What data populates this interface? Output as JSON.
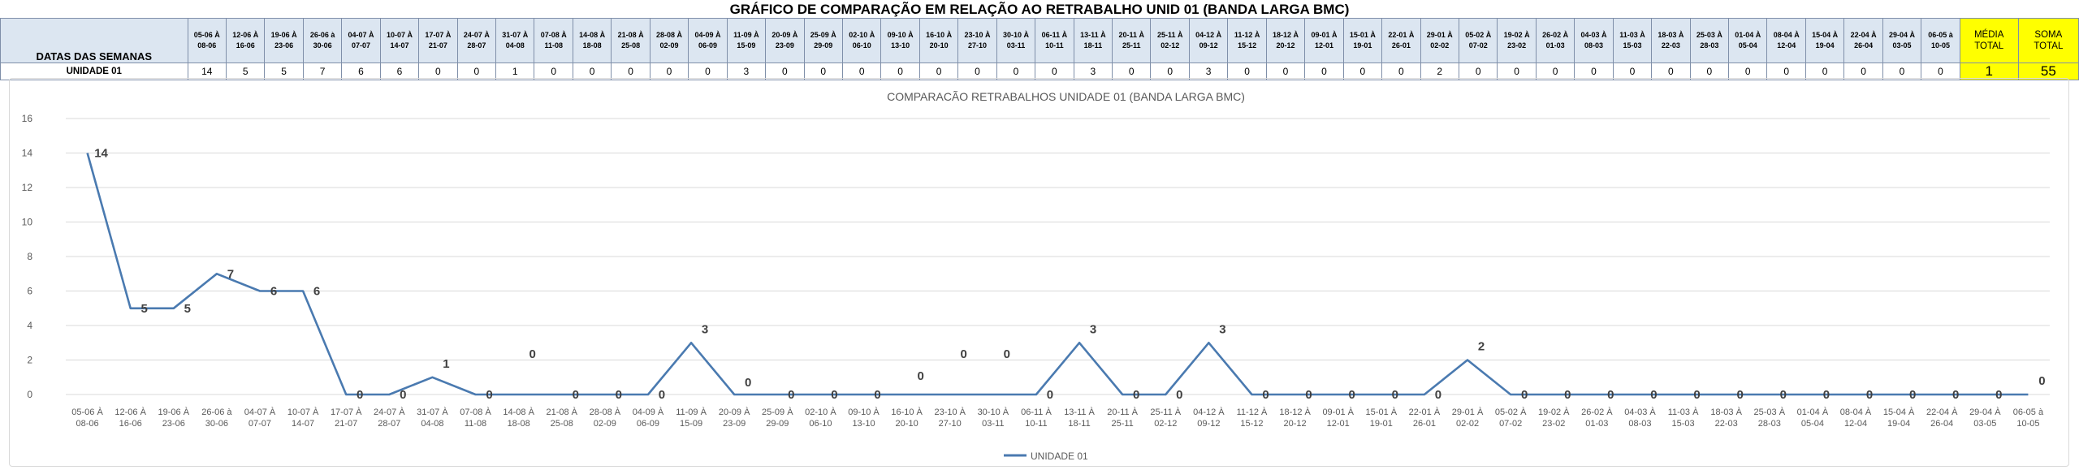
{
  "page_title": "GRÁFICO DE COMPARAÇÃO EM RELAÇÃO AO RETRABALHO UNID 01 (BANDA LARGA BMC)",
  "table": {
    "label_header": "DATAS DAS SEMANAS",
    "row_label": "UNIDADE 01",
    "weeks": [
      [
        "05-06 À",
        "08-06"
      ],
      [
        "12-06 À",
        "16-06"
      ],
      [
        "19-06 À",
        "23-06"
      ],
      [
        "26-06 à",
        "30-06"
      ],
      [
        "04-07 À",
        "07-07"
      ],
      [
        "10-07 À",
        "14-07"
      ],
      [
        "17-07 À",
        "21-07"
      ],
      [
        "24-07 À",
        "28-07"
      ],
      [
        "31-07 À",
        "04-08"
      ],
      [
        "07-08 À",
        "11-08"
      ],
      [
        "14-08 À",
        "18-08"
      ],
      [
        "21-08 À",
        "25-08"
      ],
      [
        "28-08 À",
        "02-09"
      ],
      [
        "04-09 À",
        "06-09"
      ],
      [
        "11-09 À",
        "15-09"
      ],
      [
        "20-09 À",
        "23-09"
      ],
      [
        "25-09 À",
        "29-09"
      ],
      [
        "02-10 À",
        "06-10"
      ],
      [
        "09-10 À",
        "13-10"
      ],
      [
        "16-10 À",
        "20-10"
      ],
      [
        "23-10 À",
        "27-10"
      ],
      [
        "30-10 À",
        "03-11"
      ],
      [
        "06-11 À",
        "10-11"
      ],
      [
        "13-11 À",
        "18-11"
      ],
      [
        "20-11 À",
        "25-11"
      ],
      [
        "25-11 À",
        "02-12"
      ],
      [
        "04-12 À",
        "09-12"
      ],
      [
        "11-12 À",
        "15-12"
      ],
      [
        "18-12 À",
        "20-12"
      ],
      [
        "09-01 À",
        "12-01"
      ],
      [
        "15-01 À",
        "19-01"
      ],
      [
        "22-01 À",
        "26-01"
      ],
      [
        "29-01 À",
        "02-02"
      ],
      [
        "05-02 À",
        "07-02"
      ],
      [
        "19-02 À",
        "23-02"
      ],
      [
        "26-02 À",
        "01-03"
      ],
      [
        "04-03 À",
        "08-03"
      ],
      [
        "11-03 À",
        "15-03"
      ],
      [
        "18-03 À",
        "22-03"
      ],
      [
        "25-03 À",
        "28-03"
      ],
      [
        "01-04 À",
        "05-04"
      ],
      [
        "08-04 À",
        "12-04"
      ],
      [
        "15-04 À",
        "19-04"
      ],
      [
        "22-04 À",
        "26-04"
      ],
      [
        "29-04 À",
        "03-05"
      ],
      [
        "06-05 à",
        "10-05"
      ]
    ],
    "values": [
      14,
      5,
      5,
      7,
      6,
      6,
      0,
      0,
      1,
      0,
      0,
      0,
      0,
      0,
      3,
      0,
      0,
      0,
      0,
      0,
      0,
      0,
      0,
      3,
      0,
      0,
      3,
      0,
      0,
      0,
      0,
      0,
      2,
      0,
      0,
      0,
      0,
      0,
      0,
      0,
      0,
      0,
      0,
      0,
      0,
      0
    ],
    "media_header": [
      "MÉDIA",
      "TOTAL"
    ],
    "media_value": "1",
    "soma_header": [
      "SOMA",
      "TOTAL"
    ],
    "soma_value": "55"
  },
  "colors": {
    "line": "#4a7ab0",
    "header_bg": "#dce6f1",
    "highlight": "#ffff00",
    "grid": "#d9d9d9",
    "axis_text": "#595959"
  },
  "chart_data": {
    "type": "line",
    "title": "COMPARACÃO RETRABALHOS UNIDADE 01 (BANDA LARGA BMC)",
    "x": [
      "05-06 À 08-06",
      "12-06 À 16-06",
      "19-06 À 23-06",
      "26-06 à 30-06",
      "04-07 À 07-07",
      "10-07 À 14-07",
      "17-07 À 21-07",
      "24-07 À 28-07",
      "31-07 À 04-08",
      "07-08 À 11-08",
      "14-08 À 18-08",
      "21-08 À 25-08",
      "28-08 À 02-09",
      "04-09 À 06-09",
      "11-09 À 15-09",
      "20-09 À 23-09",
      "25-09 À 29-09",
      "02-10 À 06-10",
      "09-10 À 13-10",
      "16-10 À 20-10",
      "23-10 À 27-10",
      "30-10 À 03-11",
      "06-11 À 10-11",
      "13-11 À 18-11",
      "20-11 À 25-11",
      "25-11 À 02-12",
      "04-12 À 09-12",
      "11-12 À 15-12",
      "18-12 À 20-12",
      "09-01 À 12-01",
      "15-01 À 19-01",
      "22-01 À 26-01",
      "29-01 À 02-02",
      "05-02 À 07-02",
      "19-02 À 23-02",
      "26-02 À 01-03",
      "04-03 À 08-03",
      "11-03 À 15-03",
      "18-03 À 22-03",
      "25-03 À 28-03",
      "01-04 À 05-04",
      "08-04 À 12-04",
      "15-04 À 19-04",
      "22-04 À 26-04",
      "29-04 À 03-05",
      "06-05 à 10-05"
    ],
    "series": [
      {
        "name": "UNIDADE 01",
        "values": [
          14,
          5,
          5,
          7,
          6,
          6,
          0,
          0,
          1,
          0,
          0,
          0,
          0,
          0,
          3,
          0,
          0,
          0,
          0,
          0,
          0,
          0,
          0,
          3,
          0,
          0,
          3,
          0,
          0,
          0,
          0,
          0,
          2,
          0,
          0,
          0,
          0,
          0,
          0,
          0,
          0,
          0,
          0,
          0,
          0,
          0
        ]
      }
    ],
    "yticks": [
      "0",
      "2",
      "4",
      "6",
      "8",
      "10",
      "12",
      "14",
      "16"
    ],
    "ylim": [
      0,
      16
    ],
    "grid": true,
    "legend": "bottom",
    "xlabel": "",
    "ylabel": ""
  }
}
